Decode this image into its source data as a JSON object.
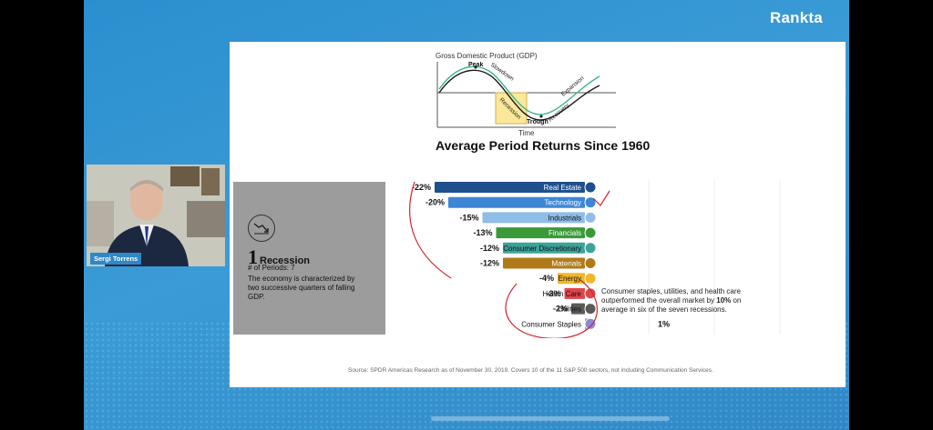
{
  "brand": {
    "logo_text": "Rankta"
  },
  "gdp_diagram": {
    "title": "Gross Domestic Product (GDP)",
    "labels": [
      "Peak",
      "Slowdown",
      "Recession",
      "Trough",
      "Recovery",
      "Expansion"
    ],
    "x_label": "Time"
  },
  "chart": {
    "title": "Average Period Returns Since 1960"
  },
  "recession_panel": {
    "number": "1",
    "label": "Recession",
    "periods": "# of Periods: 7",
    "description": "The economy is characterized by two successive quarters of falling GDP."
  },
  "chart_data": {
    "type": "bar",
    "title": "Average Period Returns Since 1960",
    "categories": [
      "Real Estate",
      "Technology",
      "Industrials",
      "Financials",
      "Consumer Discretionary",
      "Materials",
      "Energy",
      "Health Care",
      "Utilities",
      "Consumer Staples"
    ],
    "value_labels": [
      "-22%",
      "-20%",
      "-15%",
      "-13%",
      "-12%",
      "-12%",
      "-4%",
      "-3%",
      "-2%",
      "1%"
    ],
    "values": [
      -22,
      -20,
      -15,
      -13,
      -12,
      -12,
      -4,
      -3,
      -2,
      1
    ],
    "colors": [
      "#1f4f8c",
      "#3d87d6",
      "#8fbde8",
      "#3a9a3a",
      "#3aa39a",
      "#b07a1a",
      "#f2b62a",
      "#e0454a",
      "#5a5a5a",
      "#8a8ad8"
    ]
  },
  "callout": {
    "text_before": "Consumer staples, utilities, and health care outperformed the overall market by ",
    "text_bold": "10%",
    "text_after": " on average in six of the seven recessions."
  },
  "source": "Source: SPDR Americas Research as of November 30, 2019. Covers 10 of the 11 S&P 500 sectors, not including Communication Services.",
  "presenter": {
    "name": "Sergi Torrens"
  }
}
